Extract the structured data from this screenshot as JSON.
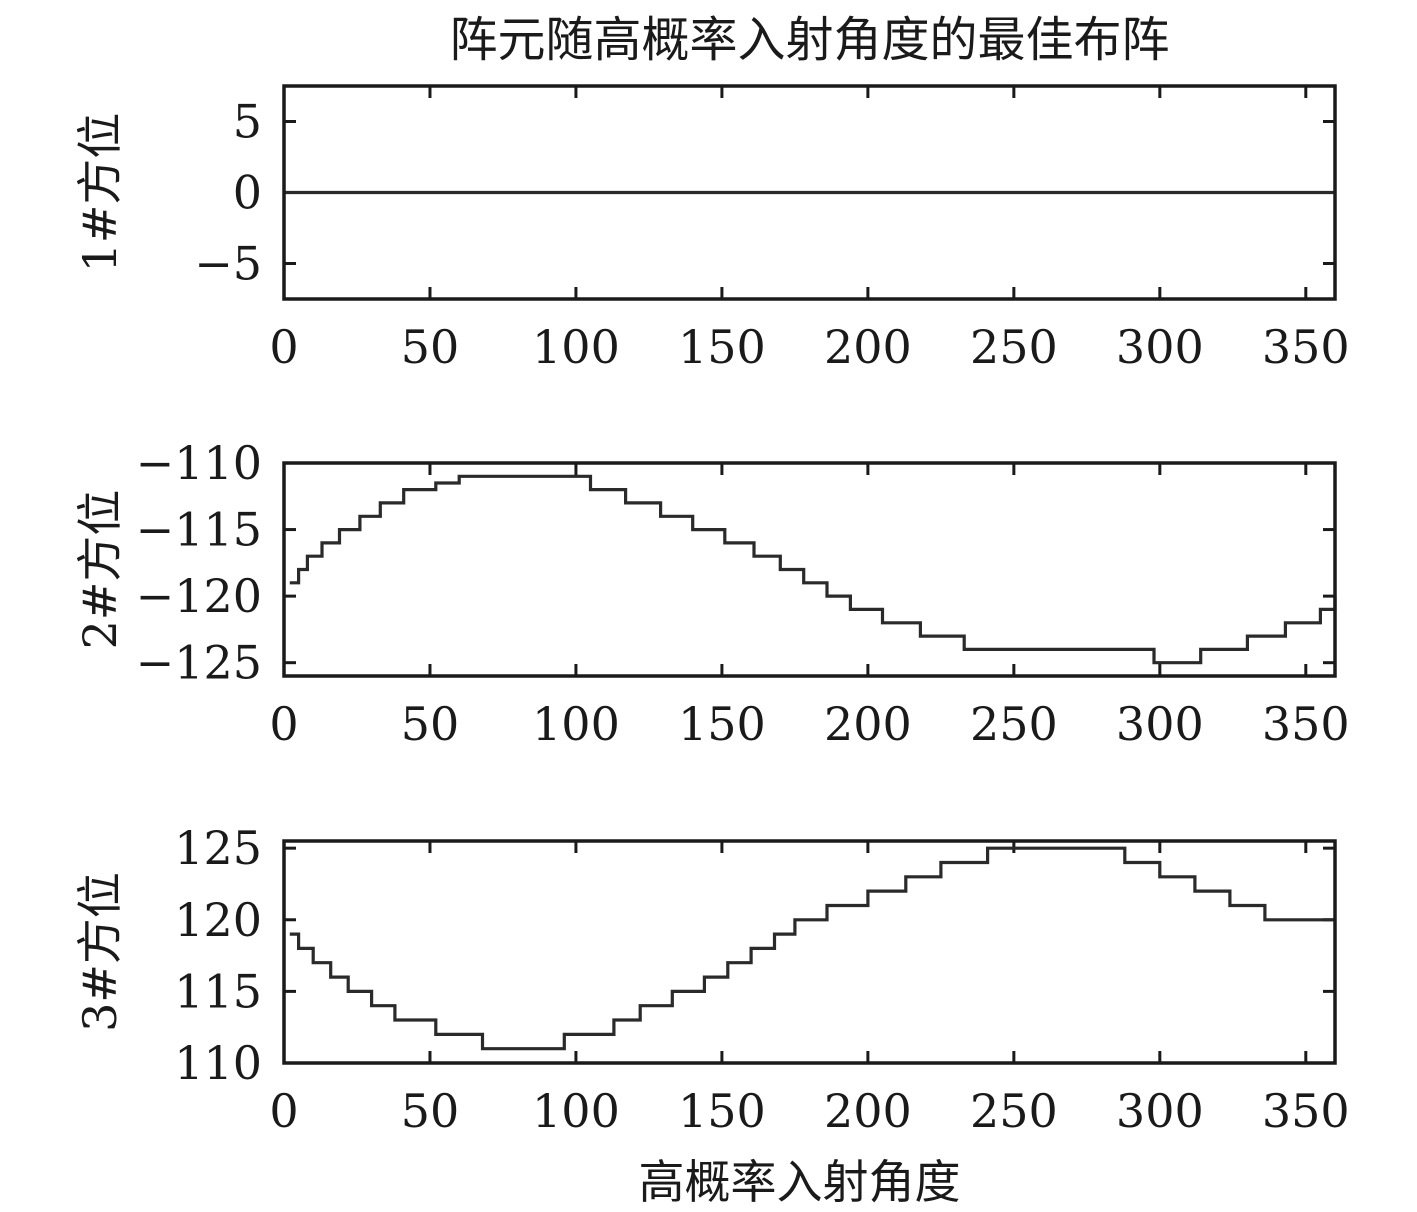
{
  "chart_data": [
    {
      "type": "line",
      "title": "阵元随高概率入射角度的最佳布阵",
      "xlabel": "",
      "ylabel": "1#方位",
      "xlim": [
        0,
        360
      ],
      "ylim": [
        -7.5,
        7.5
      ],
      "xticks": [
        0,
        50,
        100,
        150,
        200,
        250,
        300,
        350
      ],
      "xtick_labels": [
        "0",
        "50",
        "100",
        "150",
        "200",
        "250",
        "300",
        "350"
      ],
      "yticks": [
        5,
        0,
        -5
      ],
      "ytick_labels": [
        "5",
        "0",
        "−5"
      ],
      "step": true,
      "series": [
        {
          "x": [
            0,
            360
          ],
          "y": [
            0,
            0
          ]
        }
      ]
    },
    {
      "type": "line",
      "title": "",
      "xlabel": "",
      "ylabel": "2#方位",
      "xlim": [
        0,
        360
      ],
      "ylim": [
        -126,
        -110
      ],
      "xticks": [
        0,
        50,
        100,
        150,
        200,
        250,
        300,
        350
      ],
      "xtick_labels": [
        "0",
        "50",
        "100",
        "150",
        "200",
        "250",
        "300",
        "350"
      ],
      "yticks": [
        -110,
        -115,
        -120,
        -125
      ],
      "ytick_labels": [
        "−110",
        "−115",
        "−120",
        "−125"
      ],
      "step": true,
      "series": [
        {
          "x": [
            2,
            5,
            8,
            13,
            19,
            26,
            33,
            41,
            52,
            60,
            105,
            117,
            129,
            140,
            151,
            161,
            170,
            178,
            186,
            194,
            205,
            218,
            233,
            298,
            314,
            330,
            343,
            355,
            360
          ],
          "y": [
            -119,
            -118,
            -117,
            -116,
            -115,
            -114,
            -113,
            -112,
            -111.5,
            -111,
            -112,
            -113,
            -114,
            -115,
            -116,
            -117,
            -118,
            -119,
            -120,
            -121,
            -122,
            -123,
            -124,
            -125,
            -124,
            -123,
            -122,
            -121,
            -120
          ]
        }
      ]
    },
    {
      "type": "line",
      "title": "",
      "xlabel": "高概率入射角度",
      "ylabel": "3#方位",
      "xlim": [
        0,
        360
      ],
      "ylim": [
        110,
        125.5
      ],
      "xticks": [
        0,
        50,
        100,
        150,
        200,
        250,
        300,
        350
      ],
      "xtick_labels": [
        "0",
        "50",
        "100",
        "150",
        "200",
        "250",
        "300",
        "350"
      ],
      "yticks": [
        125,
        120,
        115,
        110
      ],
      "ytick_labels": [
        "125",
        "120",
        "115",
        "110"
      ],
      "step": true,
      "series": [
        {
          "x": [
            2,
            5,
            10,
            16,
            22,
            30,
            38,
            52,
            68,
            96,
            113,
            122,
            133,
            144,
            152,
            160,
            168,
            175,
            186,
            200,
            213,
            225,
            241,
            252,
            288,
            300,
            312,
            324,
            336,
            360
          ],
          "y": [
            119,
            118,
            117,
            116,
            115,
            114,
            113,
            112,
            111,
            112,
            113,
            114,
            115,
            116,
            117,
            118,
            119,
            120,
            121,
            122,
            123,
            124,
            125,
            125,
            124,
            123,
            122,
            121,
            120,
            120
          ]
        }
      ]
    }
  ]
}
